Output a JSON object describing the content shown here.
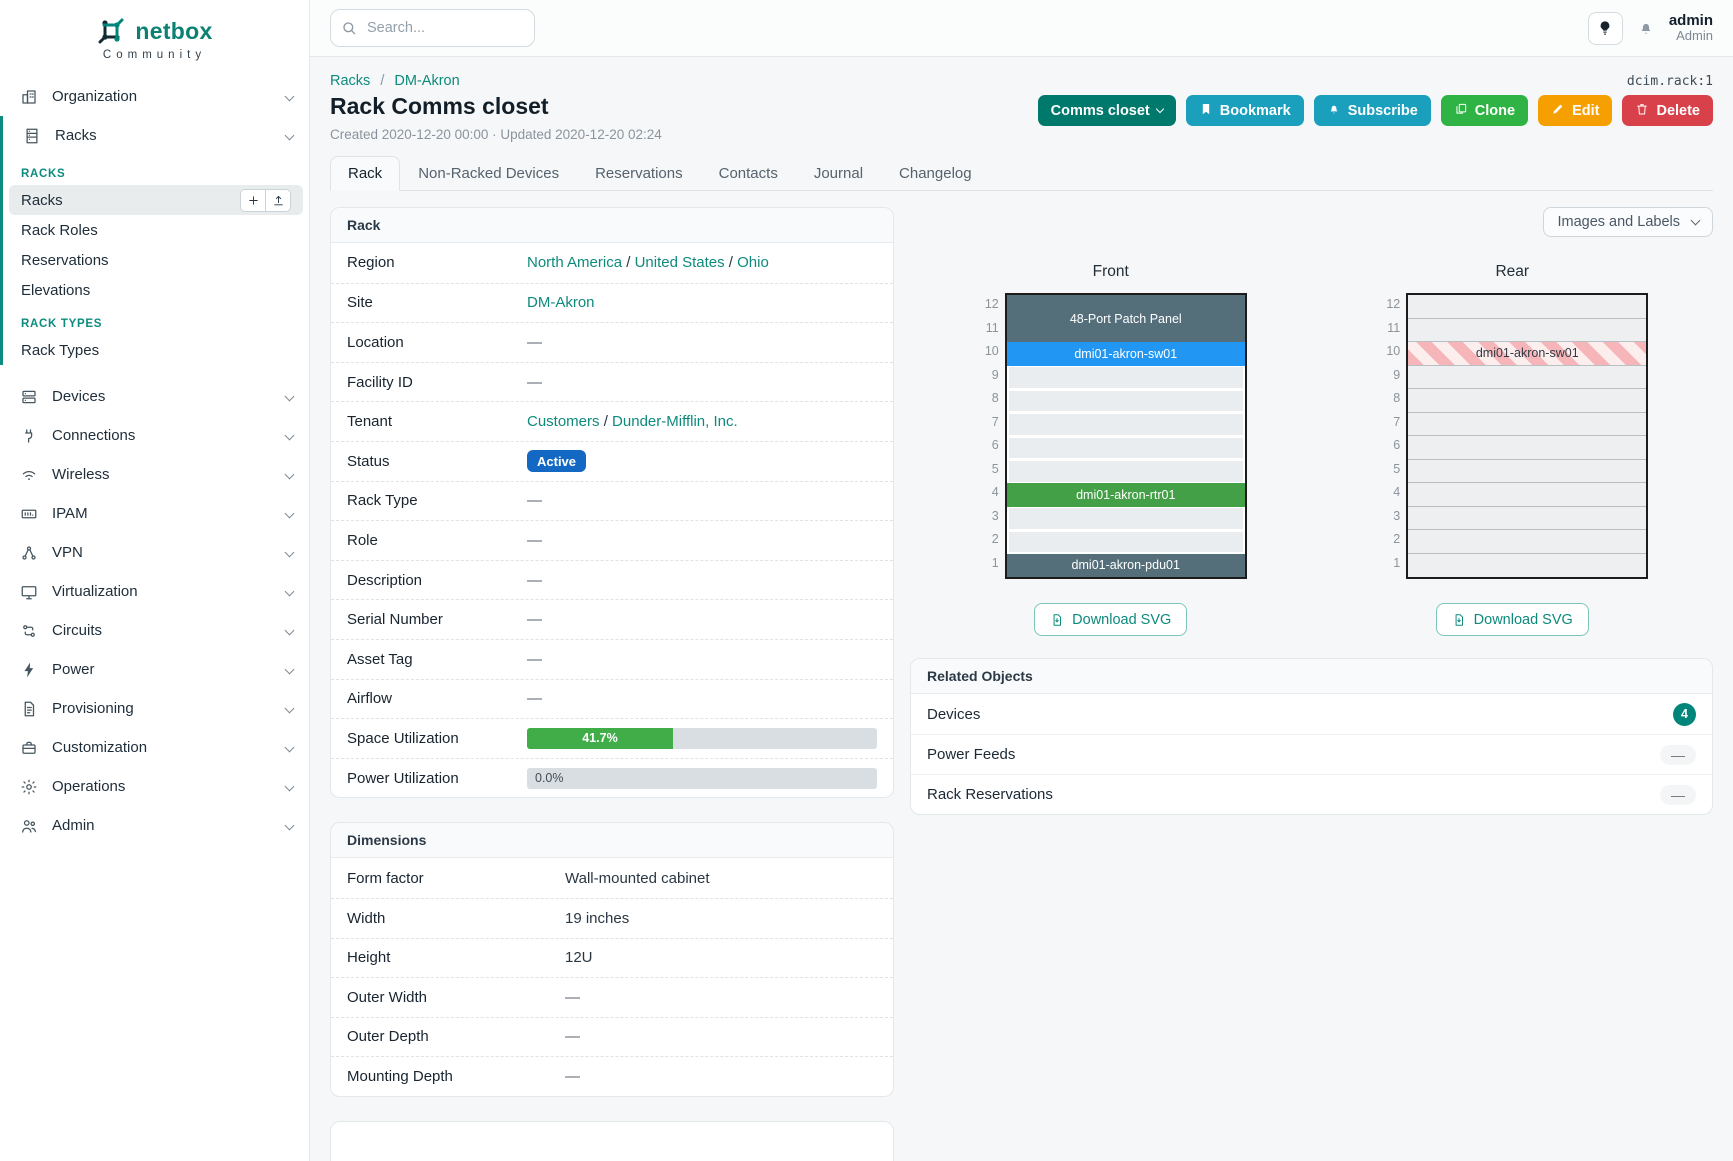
{
  "brand": {
    "name": "netbox",
    "community": "Community"
  },
  "topbar": {
    "search_placeholder": "Search...",
    "username": "admin",
    "role": "Admin"
  },
  "sidebar": {
    "items": [
      {
        "type": "menu",
        "label": "Organization",
        "icon": "organization"
      },
      {
        "type": "menu",
        "label": "Racks",
        "icon": "racks",
        "group": true
      },
      {
        "type": "section",
        "label": "RACKS",
        "group": true
      },
      {
        "type": "link",
        "label": "Racks",
        "active": true,
        "buttons": [
          "plus",
          "upload"
        ],
        "group": true
      },
      {
        "type": "link",
        "label": "Rack Roles",
        "group": true
      },
      {
        "type": "link",
        "label": "Reservations",
        "group": true
      },
      {
        "type": "link",
        "label": "Elevations",
        "group": true
      },
      {
        "type": "section",
        "label": "RACK TYPES",
        "group": true
      },
      {
        "type": "link",
        "label": "Rack Types",
        "group": true
      },
      {
        "type": "menu",
        "label": "Devices",
        "icon": "devices"
      },
      {
        "type": "menu",
        "label": "Connections",
        "icon": "connections"
      },
      {
        "type": "menu",
        "label": "Wireless",
        "icon": "wireless"
      },
      {
        "type": "menu",
        "label": "IPAM",
        "icon": "ipam"
      },
      {
        "type": "menu",
        "label": "VPN",
        "icon": "vpn"
      },
      {
        "type": "menu",
        "label": "Virtualization",
        "icon": "virtualization"
      },
      {
        "type": "menu",
        "label": "Circuits",
        "icon": "circuits"
      },
      {
        "type": "menu",
        "label": "Power",
        "icon": "power"
      },
      {
        "type": "menu",
        "label": "Provisioning",
        "icon": "provisioning"
      },
      {
        "type": "menu",
        "label": "Customization",
        "icon": "customization"
      },
      {
        "type": "menu",
        "label": "Operations",
        "icon": "operations"
      },
      {
        "type": "menu",
        "label": "Admin",
        "icon": "admin"
      }
    ]
  },
  "page": {
    "breadcrumbs": [
      "Racks",
      "DM-Akron"
    ],
    "object_id": "dcim.rack:1",
    "title": "Rack Comms closet",
    "meta": "Created 2020-12-20 00:00 · Updated 2020-12-20 02:24"
  },
  "actions": [
    {
      "name": "comms-closet",
      "label": "Comms closet",
      "style": "teal-dark",
      "icon": "chevron-after"
    },
    {
      "name": "bookmark",
      "label": "Bookmark",
      "style": "cyan",
      "icon": "bookmark"
    },
    {
      "name": "subscribe",
      "label": "Subscribe",
      "style": "cyan",
      "icon": "bell-plus"
    },
    {
      "name": "clone",
      "label": "Clone",
      "style": "green",
      "icon": "copy"
    },
    {
      "name": "edit",
      "label": "Edit",
      "style": "amber",
      "icon": "pencil"
    },
    {
      "name": "delete",
      "label": "Delete",
      "style": "red",
      "icon": "trash"
    }
  ],
  "tabs": {
    "items": [
      "Rack",
      "Non-Racked Devices",
      "Reservations",
      "Contacts",
      "Journal",
      "Changelog"
    ],
    "active": "Rack"
  },
  "rack_panel": {
    "title": "Rack",
    "rows": [
      {
        "label": "Region",
        "type": "links",
        "parts": [
          "North America",
          "United States",
          "Ohio"
        ]
      },
      {
        "label": "Site",
        "type": "links",
        "parts": [
          "DM-Akron"
        ]
      },
      {
        "label": "Location",
        "type": "dash",
        "value": "—"
      },
      {
        "label": "Facility ID",
        "type": "dash",
        "value": "—"
      },
      {
        "label": "Tenant",
        "type": "links",
        "parts": [
          "Customers",
          "Dunder-Mifflin, Inc."
        ]
      },
      {
        "label": "Status",
        "type": "badge",
        "value": "Active",
        "color": "#1368c4"
      },
      {
        "label": "Rack Type",
        "type": "dash",
        "value": "—"
      },
      {
        "label": "Role",
        "type": "dash",
        "value": "—"
      },
      {
        "label": "Description",
        "type": "dash",
        "value": "—"
      },
      {
        "label": "Serial Number",
        "type": "dash",
        "value": "—"
      },
      {
        "label": "Asset Tag",
        "type": "dash",
        "value": "—"
      },
      {
        "label": "Airflow",
        "type": "dash",
        "value": "—"
      },
      {
        "label": "Space Utilization",
        "type": "progress",
        "percent": 41.7,
        "text": "41.7%",
        "bar_color": "#41ad49"
      },
      {
        "label": "Power Utilization",
        "type": "progress",
        "percent": 0,
        "text": "0.0%",
        "bar_color": "#41ad49"
      }
    ]
  },
  "dimensions_panel": {
    "title": "Dimensions",
    "rows": [
      {
        "label": "Form factor",
        "value": "Wall-mounted cabinet"
      },
      {
        "label": "Width",
        "value": "19 inches"
      },
      {
        "label": "Height",
        "value": "12U"
      },
      {
        "label": "Outer Width",
        "value": "—"
      },
      {
        "label": "Outer Depth",
        "value": "—"
      },
      {
        "label": "Mounting Depth",
        "value": "—"
      }
    ]
  },
  "elevation": {
    "view_select": "Images and Labels",
    "download_label": "Download SVG",
    "units_total": 12,
    "views": [
      {
        "title": "Front",
        "style": "front",
        "devices": [
          {
            "top_u": 12,
            "height_u": 2,
            "label": "48-Port Patch Panel",
            "color": "#546e7a"
          },
          {
            "top_u": 10,
            "height_u": 1,
            "label": "dmi01-akron-sw01",
            "color": "#2196f3"
          },
          {
            "top_u": 4,
            "height_u": 1,
            "label": "dmi01-akron-rtr01",
            "color": "#43a047"
          },
          {
            "top_u": 1,
            "height_u": 1,
            "label": "dmi01-akron-pdu01",
            "color": "#546e7a"
          }
        ]
      },
      {
        "title": "Rear",
        "style": "rear",
        "devices": [
          {
            "top_u": 10,
            "height_u": 1,
            "label": "dmi01-akron-sw01",
            "striped": true
          }
        ]
      }
    ]
  },
  "related_objects": {
    "title": "Related Objects",
    "rows": [
      {
        "label": "Devices",
        "count": "4"
      },
      {
        "label": "Power Feeds",
        "count": null,
        "dash": "—"
      },
      {
        "label": "Rack Reservations",
        "count": null,
        "dash": "—"
      }
    ]
  },
  "colors": {
    "brand_teal": "#00857a",
    "link_teal": "#0e8a7d",
    "status_active_blue": "#1368c4",
    "utilization_green": "#41ad49",
    "device_slate": "#546e7a",
    "device_blue": "#2196f3",
    "device_green": "#43a047",
    "reserved_stripe_pink": "#f6b6b9",
    "btn_cyan": "#1a9fbc",
    "btn_green": "#2fb344",
    "btn_amber": "#f59f00",
    "btn_red": "#d8404a"
  }
}
